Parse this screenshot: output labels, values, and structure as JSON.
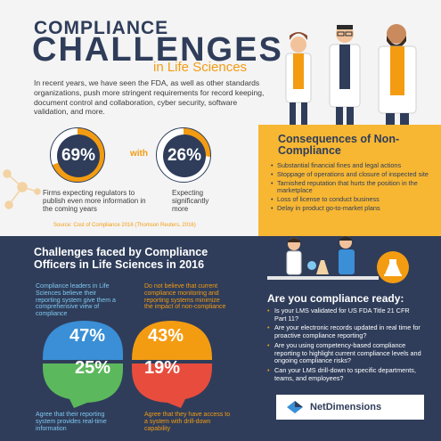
{
  "header": {
    "title_line1": "COMPLIANCE",
    "title_line2": "CHALLENGES",
    "title_line3": "in Life Sciences"
  },
  "intro": "In recent years, we have seen the FDA, as well as other standards organizations, push more stringent requirements for record keeping, document control and collaboration, cyber security, software validation, and more.",
  "stats_top": {
    "left_value": "69%",
    "left_caption": "Firms expecting regulators to publish even more information in the coming years",
    "connector": "with",
    "right_value": "26%",
    "right_caption": "Expecting significantly more",
    "source": "Source: Cost of Compliance 2016 (Thomson Reuters, 2016)"
  },
  "consequences": {
    "title": "Consequences of Non-Compliance",
    "items": [
      "Substantial financial fines and legal actions",
      "Stoppage of operations and closure of inspected site",
      "Tarnished reputation that hurts the position in the marketplace",
      "Loss of license to conduct business",
      "Delay in product go-to-market plans"
    ]
  },
  "challenges": {
    "title": "Challenges faced by Compliance Officers in Life Sciences in 2016",
    "stat1_text": "Compliance leaders in Life Sciences believe their reporting system give them a comprehensive view of compliance",
    "stat1_value": "47%",
    "stat2_text": "Do not believe that current compliance monitoring and reporting systems minimize the impact of non-compliance",
    "stat2_value": "43%",
    "stat3_value": "25%",
    "stat3_text": "Agree that their reporting system provides real-time information",
    "stat4_value": "19%",
    "stat4_text": "Agree that they have access to a system with drill-down capability"
  },
  "ready": {
    "title": "Are you compliance ready:",
    "items": [
      "Is your LMS validated for US FDA Title 21 CFR Part 11?",
      "Are your electronic records updated in real time for proactive compliance reporting?",
      "Are you using competency-based compliance reporting to highlight current compliance levels and ongoing compliance risks?",
      "Can your LMS drill-down to specific departments, teams, and employees?"
    ]
  },
  "brand": "NetDimensions",
  "colors": {
    "navy": "#2f3d5a",
    "orange": "#f39c12",
    "yellow": "#f7b733",
    "blue": "#3a8fd6",
    "red": "#e84c3d"
  }
}
